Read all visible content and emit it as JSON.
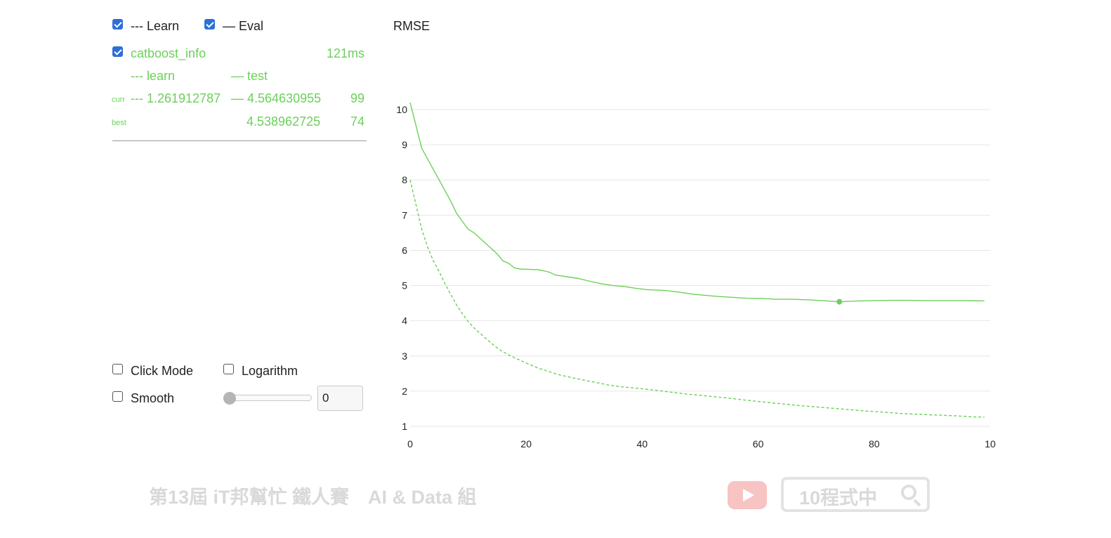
{
  "legend": {
    "learn": {
      "checked": true,
      "label": "--- Learn"
    },
    "eval": {
      "checked": true,
      "label": "— Eval"
    }
  },
  "run": {
    "checked": true,
    "name": "catboost_info",
    "time": "121ms",
    "col_learn": "--- learn",
    "col_test": "— test",
    "curr": {
      "label": "curr",
      "learn": "--- 1.261912787",
      "test": "— 4.564630955",
      "iter": "99"
    },
    "best": {
      "label": "best",
      "test": "4.538962725",
      "iter": "74"
    }
  },
  "controls": {
    "click_mode": {
      "label": "Click Mode",
      "checked": false
    },
    "logarithm": {
      "label": "Logarithm",
      "checked": false
    },
    "smooth": {
      "label": "Smooth",
      "checked": false
    },
    "smooth_value": "0"
  },
  "watermark": {
    "left_text": "第13屆 iT邦幫忙 鐵人賽　AI & Data 組",
    "search_text": "10程式中"
  },
  "colors": {
    "series": "#6cd05a",
    "checkbox": "#2d6fd9",
    "grid": "#e6e6e6"
  },
  "chart_data": {
    "type": "line",
    "title": "RMSE",
    "xlim": [
      0,
      100
    ],
    "ylim": [
      1,
      10
    ],
    "x_ticks": [
      "0",
      "20",
      "40",
      "60",
      "80",
      "10"
    ],
    "y_ticks": [
      "1",
      "2",
      "3",
      "4",
      "5",
      "6",
      "7",
      "8",
      "9",
      "10"
    ],
    "grid": true,
    "best_point": {
      "x": 74,
      "y": 4.539
    },
    "series": [
      {
        "name": "test",
        "style": "solid",
        "points": [
          [
            0,
            10.2
          ],
          [
            2,
            8.9
          ],
          [
            3,
            8.6
          ],
          [
            5,
            8.0
          ],
          [
            7,
            7.4
          ],
          [
            8,
            7.05
          ],
          [
            10,
            6.6
          ],
          [
            11,
            6.5
          ],
          [
            13,
            6.2
          ],
          [
            15,
            5.9
          ],
          [
            16,
            5.7
          ],
          [
            17,
            5.63
          ],
          [
            18,
            5.5
          ],
          [
            19,
            5.47
          ],
          [
            22,
            5.45
          ],
          [
            23,
            5.42
          ],
          [
            24,
            5.38
          ],
          [
            25,
            5.3
          ],
          [
            27,
            5.25
          ],
          [
            29,
            5.2
          ],
          [
            31,
            5.12
          ],
          [
            33,
            5.05
          ],
          [
            35,
            5.0
          ],
          [
            37,
            4.97
          ],
          [
            39,
            4.92
          ],
          [
            41,
            4.88
          ],
          [
            44,
            4.86
          ],
          [
            46,
            4.82
          ],
          [
            49,
            4.75
          ],
          [
            51,
            4.72
          ],
          [
            53,
            4.69
          ],
          [
            55,
            4.67
          ],
          [
            58,
            4.64
          ],
          [
            61,
            4.63
          ],
          [
            63,
            4.61
          ],
          [
            66,
            4.61
          ],
          [
            69,
            4.59
          ],
          [
            72,
            4.56
          ],
          [
            74,
            4.539
          ],
          [
            77,
            4.56
          ],
          [
            80,
            4.57
          ],
          [
            83,
            4.58
          ],
          [
            86,
            4.58
          ],
          [
            89,
            4.57
          ],
          [
            92,
            4.57
          ],
          [
            95,
            4.57
          ],
          [
            99,
            4.565
          ]
        ]
      },
      {
        "name": "learn",
        "style": "dashed",
        "points": [
          [
            0,
            8.0
          ],
          [
            1,
            7.3
          ],
          [
            2,
            6.6
          ],
          [
            3,
            6.1
          ],
          [
            4,
            5.7
          ],
          [
            5,
            5.4
          ],
          [
            6,
            5.05
          ],
          [
            7,
            4.75
          ],
          [
            8,
            4.45
          ],
          [
            9,
            4.2
          ],
          [
            10,
            3.98
          ],
          [
            11,
            3.8
          ],
          [
            12,
            3.65
          ],
          [
            13,
            3.5
          ],
          [
            14,
            3.36
          ],
          [
            15,
            3.23
          ],
          [
            16,
            3.12
          ],
          [
            17,
            3.03
          ],
          [
            18,
            2.95
          ],
          [
            20,
            2.8
          ],
          [
            22,
            2.66
          ],
          [
            24,
            2.55
          ],
          [
            26,
            2.45
          ],
          [
            28,
            2.38
          ],
          [
            30,
            2.31
          ],
          [
            32,
            2.25
          ],
          [
            34,
            2.18
          ],
          [
            36,
            2.13
          ],
          [
            38,
            2.1
          ],
          [
            40,
            2.07
          ],
          [
            42,
            2.03
          ],
          [
            44,
            1.99
          ],
          [
            46,
            1.95
          ],
          [
            48,
            1.91
          ],
          [
            50,
            1.88
          ],
          [
            52,
            1.85
          ],
          [
            55,
            1.8
          ],
          [
            58,
            1.74
          ],
          [
            61,
            1.69
          ],
          [
            64,
            1.64
          ],
          [
            67,
            1.59
          ],
          [
            70,
            1.55
          ],
          [
            73,
            1.51
          ],
          [
            76,
            1.47
          ],
          [
            79,
            1.43
          ],
          [
            82,
            1.4
          ],
          [
            85,
            1.36
          ],
          [
            88,
            1.34
          ],
          [
            91,
            1.32
          ],
          [
            94,
            1.3
          ],
          [
            97,
            1.27
          ],
          [
            99,
            1.262
          ]
        ]
      }
    ]
  }
}
